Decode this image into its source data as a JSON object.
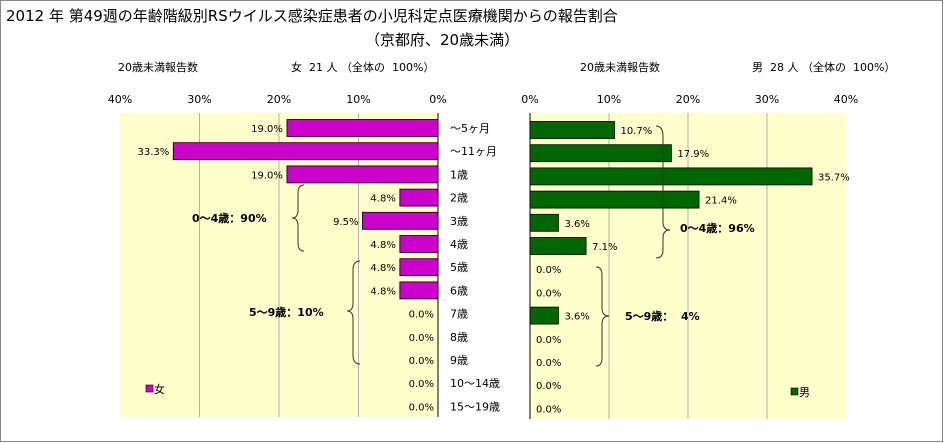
{
  "title": "2012 年 第49週の年齢階級別RSウイルス感染症患者の小児科定点医療機関からの報告割合",
  "subtitle": "（京都府、20歳未満）",
  "chart_data": [
    {
      "type": "bar",
      "orientation": "horizontal",
      "direction": "right-to-left",
      "header_label": "20歳未満報告数",
      "header_summary": "女  21 人 （全体の  100%）",
      "categories": [
        "～5ヶ月",
        "～11ヶ月",
        "1歳",
        "2歳",
        "3歳",
        "4歳",
        "5歳",
        "6歳",
        "7歳",
        "8歳",
        "9歳",
        "10～14歳",
        "15～19歳"
      ],
      "values": [
        19.0,
        33.3,
        19.0,
        4.8,
        9.5,
        4.8,
        4.8,
        4.8,
        0.0,
        0.0,
        0.0,
        0.0,
        0.0
      ],
      "data_labels": [
        "19.0%",
        "33.3%",
        "19.0%",
        "4.8%",
        "9.5%",
        "4.8%",
        "4.8%",
        "4.8%",
        "0.0%",
        "0.0%",
        "0.0%",
        "0.0%",
        "0.0%"
      ],
      "xlim": [
        0,
        40
      ],
      "ticks": [
        "40%",
        "30%",
        "20%",
        "10%",
        "0%"
      ],
      "color": "#cc00cc",
      "legend": "女",
      "legend_position": "bottom-left",
      "grid": "vertical",
      "annotations": [
        "0～4歳：90%",
        "5～9歳：10%"
      ]
    },
    {
      "type": "bar",
      "orientation": "horizontal",
      "direction": "left-to-right",
      "header_label": "20歳未満報告数",
      "header_summary": "男  28 人 （全体の  100%）",
      "categories": [
        "～5ヶ月",
        "～11ヶ月",
        "1歳",
        "2歳",
        "3歳",
        "4歳",
        "5歳",
        "6歳",
        "7歳",
        "8歳",
        "9歳",
        "10～14歳",
        "15～19歳"
      ],
      "values": [
        10.7,
        17.9,
        35.7,
        21.4,
        3.6,
        7.1,
        0.0,
        0.0,
        3.6,
        0.0,
        0.0,
        0.0,
        0.0
      ],
      "data_labels": [
        "10.7%",
        "17.9%",
        "35.7%",
        "21.4%",
        "3.6%",
        "7.1%",
        "0.0%",
        "0.0%",
        "3.6%",
        "0.0%",
        "0.0%",
        "0.0%",
        "0.0%"
      ],
      "xlim": [
        0,
        40
      ],
      "ticks": [
        "0%",
        "10%",
        "20%",
        "30%",
        "40%"
      ],
      "color": "#006600",
      "legend": "男",
      "legend_position": "bottom-right",
      "grid": "vertical",
      "annotations": [
        "0～4歳：96%",
        "5～9歳：  4%"
      ]
    }
  ]
}
